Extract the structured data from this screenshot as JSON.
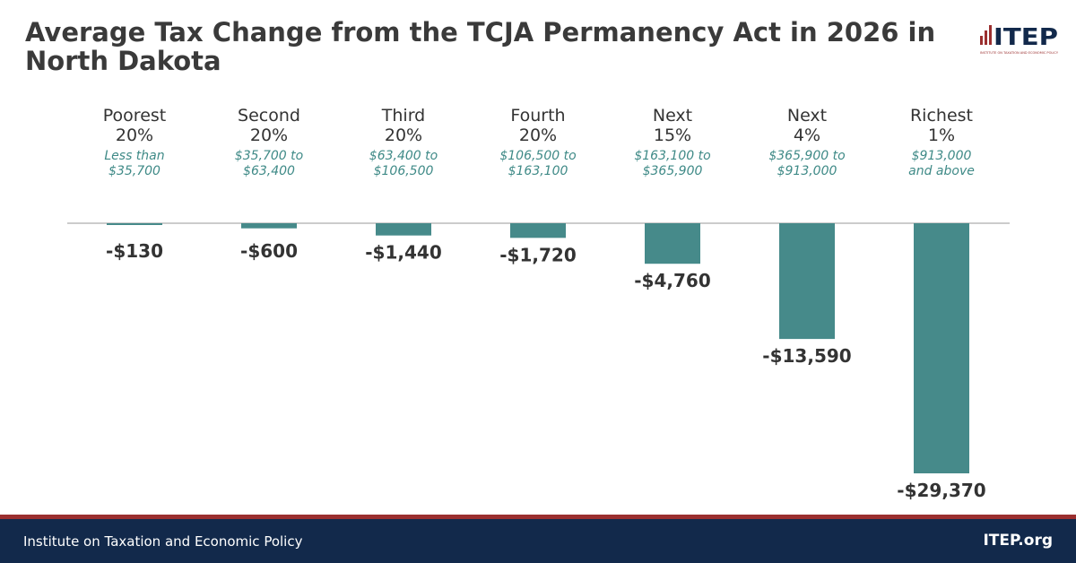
{
  "title": "Average Tax Change from the TCJA Permanency Act in 2026 in North Dakota",
  "logo": {
    "text": "ITEP",
    "subtext": "INSTITUTE ON TAXATION AND ECONOMIC POLICY"
  },
  "footer": {
    "left": "Institute on Taxation and Economic Policy",
    "right": "ITEP.org"
  },
  "colors": {
    "bar": "#468a8a",
    "range_text": "#3f8a87",
    "footer": "#12294b",
    "accent": "#9b2f2f"
  },
  "chart_data": {
    "type": "bar",
    "categories": [
      {
        "line1": "Poorest",
        "line2": "20%",
        "range1": "Less than",
        "range2": "$35,700"
      },
      {
        "line1": "Second",
        "line2": "20%",
        "range1": "$35,700 to",
        "range2": "$63,400"
      },
      {
        "line1": "Third",
        "line2": "20%",
        "range1": "$63,400 to",
        "range2": "$106,500"
      },
      {
        "line1": "Fourth",
        "line2": "20%",
        "range1": "$106,500 to",
        "range2": "$163,100"
      },
      {
        "line1": "Next",
        "line2": "15%",
        "range1": "$163,100 to",
        "range2": "$365,900"
      },
      {
        "line1": "Next",
        "line2": "4%",
        "range1": "$365,900 to",
        "range2": "$913,000"
      },
      {
        "line1": "Richest",
        "line2": "1%",
        "range1": "$913,000",
        "range2": "and above"
      }
    ],
    "values": [
      -130,
      -600,
      -1440,
      -1720,
      -4760,
      -13590,
      -29370
    ],
    "labels": [
      "-$130",
      "-$600",
      "-$1,440",
      "-$1,720",
      "-$4,760",
      "-$13,590",
      "-$29,370"
    ]
  }
}
